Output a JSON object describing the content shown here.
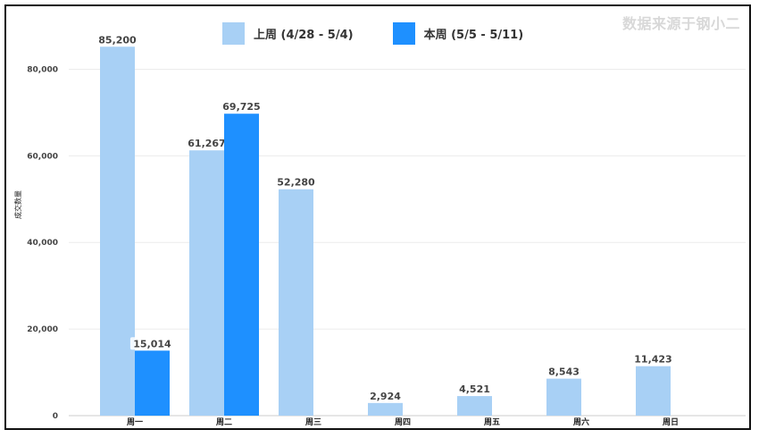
{
  "source_note": "数据来源于钢小二",
  "chart_data": {
    "type": "bar",
    "title": "",
    "xlabel": "",
    "ylabel": "成交数量",
    "ylim": [
      0,
      90000
    ],
    "yticks": [
      0,
      20000,
      40000,
      60000,
      80000
    ],
    "ytick_labels": [
      "0",
      "20,000",
      "40,000",
      "60,000",
      "80,000"
    ],
    "categories": [
      "周一",
      "周二",
      "周三",
      "周四",
      "周五",
      "周六",
      "周日"
    ],
    "series": [
      {
        "name": "上周 (4/28 - 5/4)",
        "values": [
          85200,
          61267,
          52280,
          2924,
          4521,
          8543,
          11423
        ],
        "labels": [
          "85,200",
          "61,267",
          "52,280",
          "2,924",
          "4,521",
          "8,543",
          "11,423"
        ]
      },
      {
        "name": "本周 (5/5 - 5/11)",
        "values": [
          15014,
          69725,
          null,
          null,
          null,
          null,
          null
        ],
        "labels": [
          "15,014",
          "69,725",
          "",
          "",
          "",
          "",
          ""
        ]
      }
    ],
    "legend_position": "top",
    "grid": true,
    "colors": [
      "#A8D0F5",
      "#1E90FF"
    ]
  }
}
